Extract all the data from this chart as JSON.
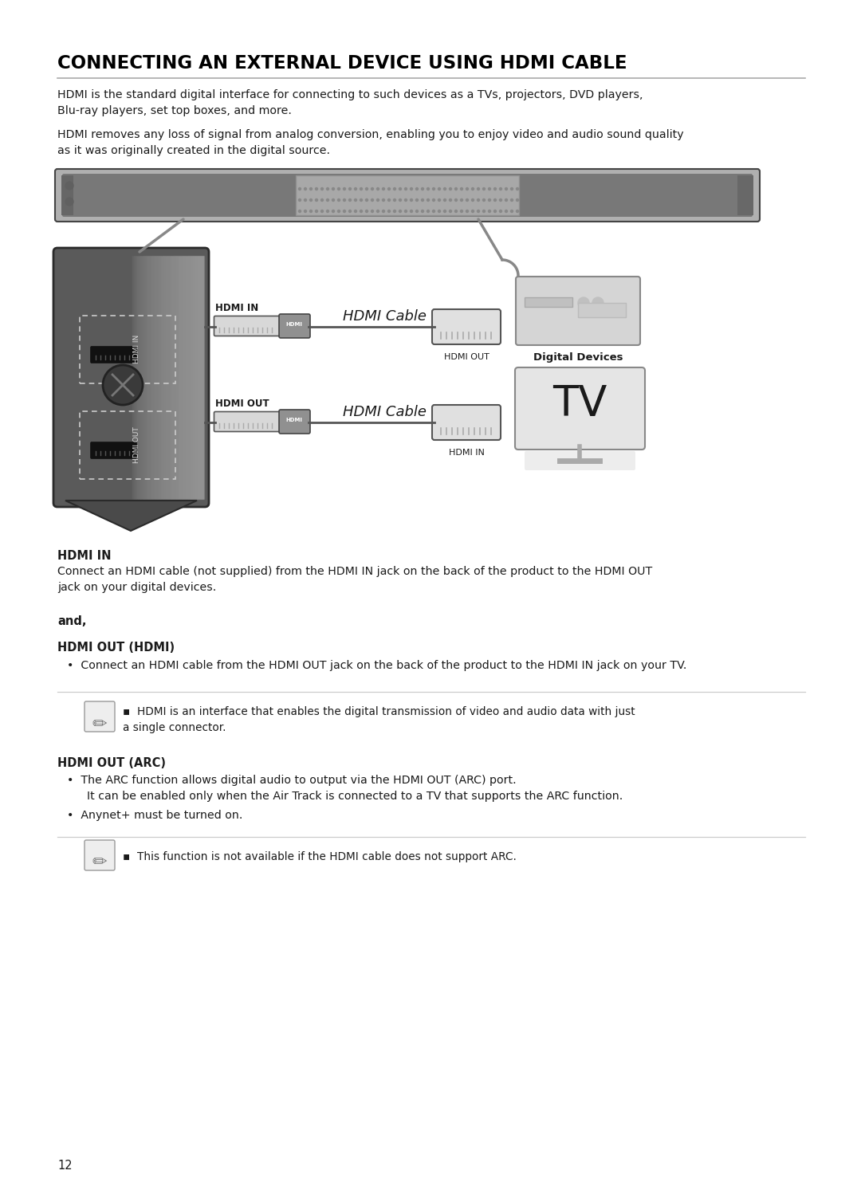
{
  "title": "CONNECTING AN EXTERNAL DEVICE USING HDMI CABLE",
  "intro_text1": "HDMI is the standard digital interface for connecting to such devices as a TVs, projectors, DVD players,\nBlu-ray players, set top boxes, and more.",
  "intro_text2": "HDMI removes any loss of signal from analog conversion, enabling you to enjoy video and audio sound quality\nas it was originally created in the digital source.",
  "section1_heading": "HDMI IN",
  "section1_body": "Connect an HDMI cable (not supplied) from the HDMI IN jack on the back of the product to the HDMI OUT\njack on your digital devices.",
  "and_text": "and,",
  "section2_heading": "HDMI OUT (HDMI)",
  "section2_bullet": "Connect an HDMI cable from the HDMI OUT jack on the back of the product to the HDMI IN jack on your TV.",
  "note1_text": "HDMI is an interface that enables the digital transmission of video and audio data with just\na single connector.",
  "section3_heading": "HDMI OUT (ARC)",
  "section3_bullet1a": "The ARC function allows digital audio to output via the HDMI OUT (ARC) port.",
  "section3_bullet1b": "  It can be enabled only when the Air Track is connected to a TV that supports the ARC function.",
  "section3_bullet2": "Anynet+ must be turned on.",
  "note2_text": "This function is not available if the HDMI cable does not support ARC.",
  "page_number": "12",
  "bg_color": "#ffffff",
  "text_color": "#1a1a1a",
  "title_color": "#000000",
  "line_color": "#bbbbbb"
}
